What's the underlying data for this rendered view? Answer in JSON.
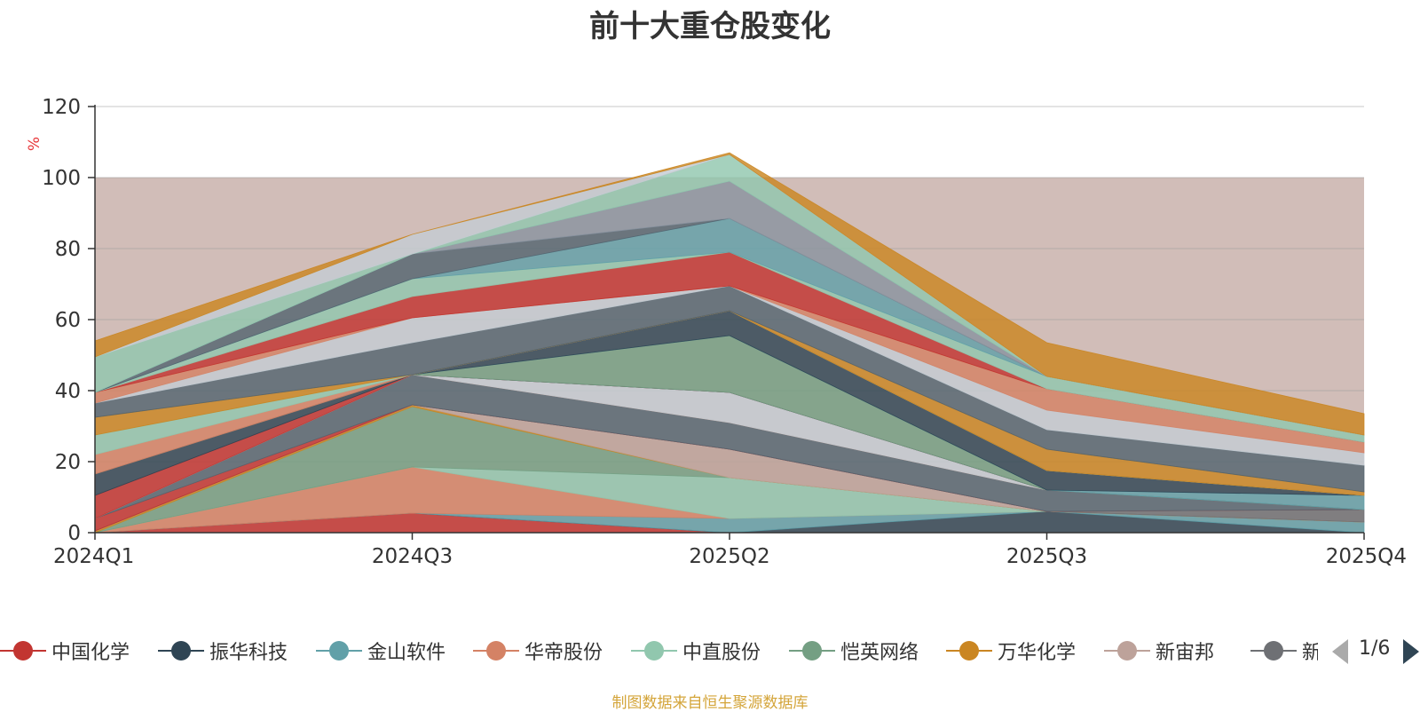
{
  "chart_data": {
    "type": "area",
    "title": "前十大重仓股变化",
    "ylabel": "%",
    "xlabel": "",
    "categories": [
      "2024Q1",
      "2024Q3",
      "2025Q2",
      "2025Q3",
      "2025Q4"
    ],
    "ylim": [
      0,
      120
    ],
    "yticks": [
      0,
      20,
      40,
      60,
      80,
      100,
      120
    ],
    "grid": true,
    "stacked": true,
    "background_band": {
      "from": 0,
      "to": 100,
      "color": "#d1bdb8"
    },
    "series": [
      {
        "name": "中国化学",
        "color": "#c23531",
        "values": [
          0,
          5.5,
          0,
          0,
          0
        ]
      },
      {
        "name": "振华科技",
        "color": "#2f4554",
        "values": [
          0,
          0,
          0,
          6,
          0
        ]
      },
      {
        "name": "金山软件",
        "color": "#61a0a8",
        "values": [
          0,
          0,
          4,
          0,
          3
        ]
      },
      {
        "name": "华帝股份",
        "color": "#d48265",
        "values": [
          0,
          13,
          0,
          0,
          0
        ]
      },
      {
        "name": "中直股份",
        "color": "#91c7ae",
        "values": [
          0,
          0,
          11.5,
          0,
          0
        ]
      },
      {
        "name": "恺英网络",
        "color": "#749f83",
        "values": [
          0,
          17,
          0,
          0,
          0
        ]
      },
      {
        "name": "万华化学",
        "color": "#ca8622",
        "values": [
          0.5,
          0.5,
          0,
          0,
          0
        ]
      },
      {
        "name": "新宙邦",
        "color": "#bda29a",
        "values": [
          0,
          0,
          8,
          0,
          0
        ]
      },
      {
        "name": "新易盛",
        "color": "#6e7074",
        "values": [
          0,
          0,
          0,
          0,
          3.5
        ]
      },
      {
        "name": "",
        "color": "#c23531",
        "values": [
          3.5,
          0,
          0,
          0,
          0
        ]
      },
      {
        "name": "",
        "color": "#546570",
        "values": [
          0,
          8.5,
          7.5,
          6,
          0
        ]
      },
      {
        "name": "",
        "color": "#d48265",
        "values": [
          0,
          0,
          0,
          0,
          0
        ]
      },
      {
        "name": "",
        "color": "#c4ccd3",
        "values": [
          0,
          0,
          8.5,
          0,
          0
        ]
      },
      {
        "name": "",
        "color": "#c23531",
        "values": [
          6.5,
          0,
          0,
          0,
          0
        ]
      },
      {
        "name": "",
        "color": "#2f4554",
        "values": [
          6,
          0,
          0,
          0,
          0
        ]
      },
      {
        "name": "",
        "color": "#749f83",
        "values": [
          0,
          0,
          16,
          0,
          0
        ]
      },
      {
        "name": "",
        "color": "#61a0a8",
        "values": [
          0,
          0,
          0,
          0,
          4
        ]
      },
      {
        "name": "",
        "color": "#2f4554",
        "values": [
          0,
          0,
          7,
          5.5,
          0
        ]
      },
      {
        "name": "",
        "color": "#d48265",
        "values": [
          5.5,
          0,
          0,
          0,
          0
        ]
      },
      {
        "name": "",
        "color": "#91c7ae",
        "values": [
          5.5,
          0,
          0,
          0,
          0
        ]
      },
      {
        "name": "",
        "color": "#ca8622",
        "values": [
          5,
          0,
          0,
          6,
          1
        ]
      },
      {
        "name": "",
        "color": "#ca8622",
        "values": [
          0,
          0,
          0,
          0,
          0
        ]
      },
      {
        "name": "",
        "color": "#546570",
        "values": [
          4,
          9,
          7,
          5.5,
          7.5
        ]
      },
      {
        "name": "",
        "color": "#c4ccd3",
        "values": [
          0,
          7,
          0,
          5.5,
          3.5
        ]
      },
      {
        "name": "",
        "color": "#d48265",
        "values": [
          3,
          0,
          0,
          6,
          3
        ]
      },
      {
        "name": "",
        "color": "#c23531",
        "values": [
          0,
          6,
          9.5,
          0,
          0
        ]
      },
      {
        "name": "",
        "color": "#91c7ae",
        "values": [
          0,
          5,
          0,
          3.5,
          2
        ]
      },
      {
        "name": "",
        "color": "#61a0a8",
        "values": [
          0,
          0,
          9.5,
          0,
          0
        ]
      },
      {
        "name": "",
        "color": "#546570",
        "values": [
          0,
          7,
          0,
          0,
          0
        ]
      },
      {
        "name": "",
        "color": "#8a94a0",
        "values": [
          0,
          0,
          10.5,
          0,
          0
        ]
      },
      {
        "name": "",
        "color": "#91c7ae",
        "values": [
          10,
          0,
          7.5,
          0,
          0
        ]
      },
      {
        "name": "",
        "color": "#c4ccd3",
        "values": [
          0,
          5.5,
          0,
          0,
          0
        ]
      },
      {
        "name": "",
        "color": "#ca8622",
        "values": [
          4.5,
          0,
          0.5,
          9.5,
          6
        ]
      }
    ]
  },
  "legend": {
    "items": [
      {
        "label": "中国化学",
        "color": "#c23531"
      },
      {
        "label": "振华科技",
        "color": "#2f4554"
      },
      {
        "label": "金山软件",
        "color": "#61a0a8"
      },
      {
        "label": "华帝股份",
        "color": "#d48265"
      },
      {
        "label": "中直股份",
        "color": "#91c7ae"
      },
      {
        "label": "恺英网络",
        "color": "#749f83"
      },
      {
        "label": "万华化学",
        "color": "#ca8622"
      },
      {
        "label": "新宙邦",
        "color": "#bda29a"
      },
      {
        "label": "新易盛",
        "color": "#6e7074"
      }
    ],
    "page_indicator": "1/6"
  },
  "footer_note": "制图数据来自恒生聚源数据库"
}
